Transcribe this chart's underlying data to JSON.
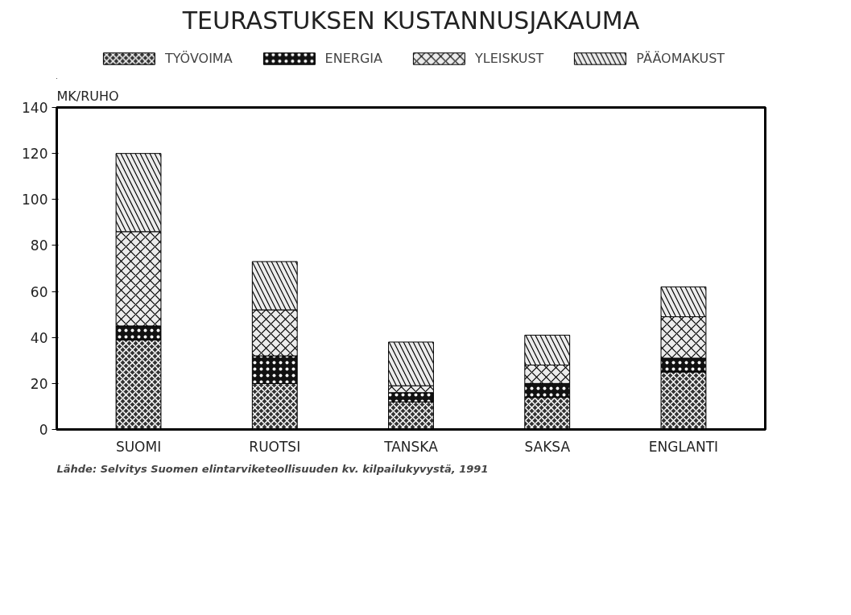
{
  "chart_data": {
    "type": "bar",
    "stacked": true,
    "title": "TEURASTUKSEN KUSTANNUSJAKAUMA",
    "ylabel": "MK/RUHO",
    "categories": [
      "SUOMI",
      "RUOTSI",
      "TANSKA",
      "SAKSA",
      "ENGLANTI"
    ],
    "series": [
      {
        "name": "TYÖVOIMA",
        "color": "#333333",
        "values": [
          39,
          20,
          12,
          14,
          25
        ]
      },
      {
        "name": "ENERGIA",
        "color": "#111111",
        "values": [
          6,
          12,
          4,
          6,
          6
        ]
      },
      {
        "name": "YLEISKUST",
        "color": "#ececec",
        "values": [
          41,
          20,
          3,
          8,
          18
        ]
      },
      {
        "name": "PÄÄOMAKUST",
        "color": "#ececec",
        "values": [
          34,
          21,
          19,
          13,
          13
        ]
      }
    ],
    "ylim": [
      0,
      140
    ],
    "yticks": [
      0,
      20,
      40,
      60,
      80,
      100,
      120,
      140
    ],
    "grid": false,
    "legend": "top",
    "annotations": [
      "Lähde: Selvitys Suomen elintarviketeollisuuden kv. kilpailukyvystä, 1991"
    ]
  }
}
